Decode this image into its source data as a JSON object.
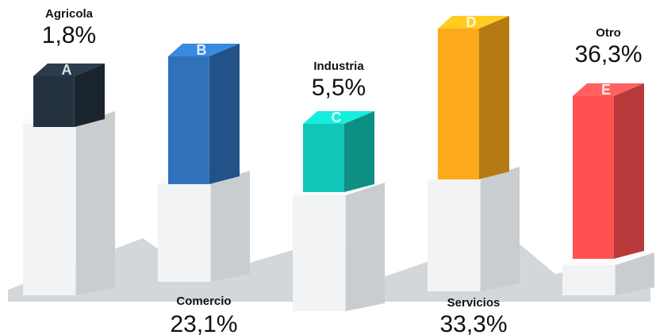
{
  "chart_data": {
    "type": "bar",
    "categories": [
      "Agricola",
      "Comercio",
      "Industria",
      "Servicios",
      "Otro"
    ],
    "letters": [
      "A",
      "B",
      "C",
      "D",
      "E"
    ],
    "values": [
      1.8,
      23.1,
      5.5,
      33.3,
      36.3
    ],
    "value_labels": [
      "1,8%",
      "23,1%",
      "5,5%",
      "33,3%",
      "36,3%"
    ],
    "colors": [
      "#243240",
      "#2f72bb",
      "#12c6b8",
      "#fcaa1a",
      "#ff5050"
    ]
  }
}
